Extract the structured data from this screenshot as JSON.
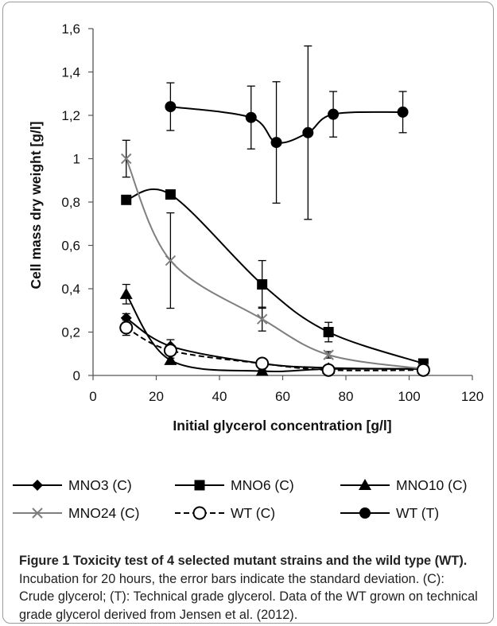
{
  "figure": {
    "caption_title": "Figure 1 Toxicity test of 4 selected mutant strains and the wild type (WT).",
    "caption_body": " Incubation for 20 hours, the error bars indicate the standard deviation. (C): Crude glycerol; (T): Technical grade glycerol. Data of the WT grown on technical grade glycerol derived from Jensen et al. (2012)."
  },
  "chart_data": {
    "type": "line",
    "xlabel": "Initial glycerol concentration [g/l]",
    "ylabel": "Cell mass dry weight [g/l]",
    "xlim": [
      0,
      120
    ],
    "ylim": [
      0,
      1.6
    ],
    "x_ticks": [
      0,
      20,
      40,
      60,
      80,
      100,
      120
    ],
    "x_tick_labels": [
      "0",
      "20",
      "40",
      "60",
      "80",
      "100",
      "120"
    ],
    "y_ticks": [
      0,
      0.2,
      0.4,
      0.6,
      0.8,
      1.0,
      1.2,
      1.4,
      1.6
    ],
    "y_tick_labels": [
      "0",
      "0,2",
      "0,4",
      "0,6",
      "0,8",
      "1",
      "1,2",
      "1,4",
      "1,6"
    ],
    "grid": false,
    "legend_position": "bottom",
    "series": [
      {
        "name": "MNO3 (C)",
        "marker": "diamond",
        "line": "solid",
        "color": "#000000",
        "x": [
          10.5,
          24.5,
          53.5,
          74.5,
          104.5
        ],
        "y": [
          0.265,
          0.135,
          0.055,
          0.035,
          0.03
        ],
        "err": [
          0.02,
          0.03,
          0.01,
          0.01,
          0.005
        ]
      },
      {
        "name": "MNO6 (C)",
        "marker": "square",
        "line": "solid",
        "color": "#000000",
        "x": [
          10.5,
          24.5,
          53.5,
          74.5,
          104.5
        ],
        "y": [
          0.81,
          0.835,
          0.42,
          0.2,
          0.055
        ],
        "err": [
          0.0,
          0.0,
          0.11,
          0.045,
          0.01
        ]
      },
      {
        "name": "MNO10 (C)",
        "marker": "triangle",
        "line": "solid",
        "color": "#000000",
        "x": [
          10.5,
          24.5,
          53.5,
          74.5,
          104.5
        ],
        "y": [
          0.375,
          0.07,
          0.02,
          0.03,
          0.03
        ],
        "err": [
          0.045,
          0.01,
          0.005,
          0.005,
          0.005
        ]
      },
      {
        "name": "MNO24 (C)",
        "marker": "x",
        "line": "solid",
        "color": "#7f7f7f",
        "x": [
          10.5,
          24.5,
          53.5,
          74.5,
          104.5
        ],
        "y": [
          1.0,
          0.53,
          0.26,
          0.095,
          0.03
        ],
        "err": [
          0.085,
          0.22,
          0.055,
          0.015,
          0.005
        ]
      },
      {
        "name": "WT (C)",
        "marker": "circle-open",
        "line": "dashed",
        "color": "#000000",
        "x": [
          10.5,
          24.5,
          53.5,
          74.5,
          104.5
        ],
        "y": [
          0.22,
          0.115,
          0.055,
          0.025,
          0.025
        ],
        "err": [
          0.035,
          0.02,
          0.01,
          0.005,
          0.005
        ]
      },
      {
        "name": "WT (T)",
        "marker": "circle",
        "line": "solid",
        "color": "#000000",
        "x": [
          24.5,
          50,
          58,
          68,
          76,
          98
        ],
        "y": [
          1.24,
          1.19,
          1.075,
          1.12,
          1.205,
          1.215
        ],
        "err": [
          0.11,
          0.145,
          0.28,
          0.4,
          0.105,
          0.095
        ]
      }
    ]
  }
}
